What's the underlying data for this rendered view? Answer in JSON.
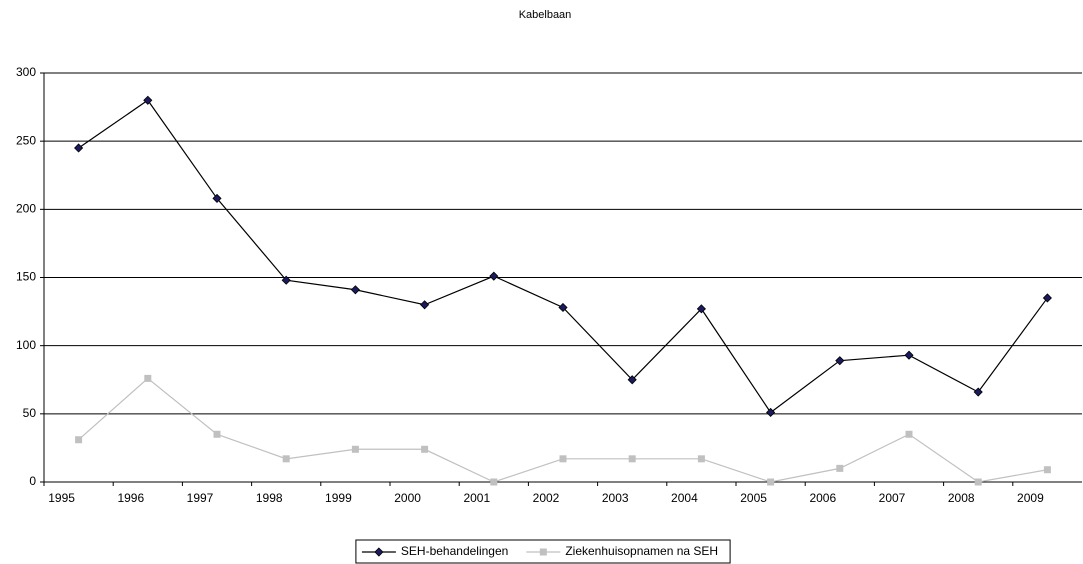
{
  "chart_data": {
    "type": "line",
    "title": "Kabelbaan",
    "categories": [
      "1995",
      "1996",
      "1997",
      "1998",
      "1999",
      "2000",
      "2001",
      "2002",
      "2003",
      "2004",
      "2005",
      "2006",
      "2007",
      "2008",
      "2009"
    ],
    "series": [
      {
        "name": "SEH-behandelingen",
        "color": "#000000",
        "marker": "diamond",
        "marker_color": "#1a1a5e",
        "values": [
          245,
          280,
          208,
          148,
          141,
          130,
          151,
          128,
          75,
          127,
          51,
          89,
          93,
          66,
          135
        ]
      },
      {
        "name": "Ziekenhuisopnamen na SEH",
        "color": "#c0c0c0",
        "marker": "square",
        "marker_color": "#c0c0c0",
        "values": [
          31,
          76,
          35,
          17,
          24,
          24,
          0,
          17,
          17,
          17,
          0,
          10,
          35,
          0,
          9
        ]
      }
    ],
    "ylim": [
      0,
      300
    ],
    "yticks": [
      0,
      50,
      100,
      150,
      200,
      250,
      300
    ],
    "grid": true,
    "legend": "bottom"
  }
}
